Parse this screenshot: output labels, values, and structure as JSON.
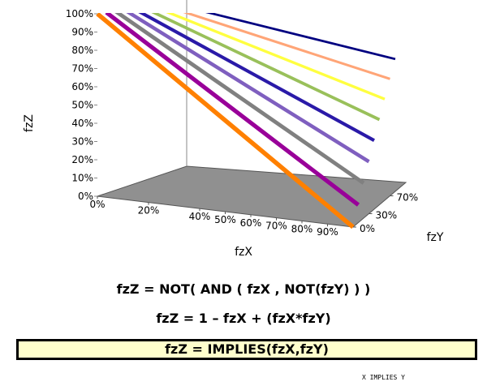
{
  "chart_data": {
    "type": "line3d",
    "xlabel": "fzX",
    "ylabel": "fzY",
    "zlabel": "fzZ",
    "x": [
      0,
      100
    ],
    "series": [
      {
        "y": 0,
        "color": "#ff8000",
        "values": [
          100,
          0
        ]
      },
      {
        "y": 10,
        "color": "#990099",
        "values": [
          100,
          10
        ]
      },
      {
        "y": 20,
        "color": "#808080",
        "values": [
          100,
          20
        ]
      },
      {
        "y": 30,
        "color": "#7f5fbf",
        "values": [
          100,
          30
        ]
      },
      {
        "y": 40,
        "color": "#2a1aa8",
        "values": [
          100,
          40
        ]
      },
      {
        "y": 50,
        "color": "#99c05a",
        "values": [
          100,
          50
        ]
      },
      {
        "y": 60,
        "color": "#ffff40",
        "values": [
          100,
          60
        ]
      },
      {
        "y": 70,
        "color": "#ffa577",
        "values": [
          100,
          70
        ]
      },
      {
        "y": 80,
        "color": "#000080",
        "values": [
          100,
          80
        ]
      }
    ],
    "xlim": [
      0,
      100
    ],
    "ylim": [
      0,
      100
    ],
    "zlim": [
      0,
      100
    ],
    "xticks": [
      {
        "value": 0,
        "label": "0%"
      },
      {
        "value": 20,
        "label": "20%"
      },
      {
        "value": 40,
        "label": "40%"
      },
      {
        "value": 50,
        "label": "50%"
      },
      {
        "value": 60,
        "label": "60%"
      },
      {
        "value": 70,
        "label": "70%"
      },
      {
        "value": 80,
        "label": "80%"
      },
      {
        "value": 90,
        "label": "90%"
      }
    ],
    "yticks": [
      {
        "value": 0,
        "label": "0%"
      },
      {
        "value": 30,
        "label": "30%"
      },
      {
        "value": 70,
        "label": "70%"
      }
    ],
    "zticks": [
      {
        "value": 0,
        "label": "0%"
      },
      {
        "value": 10,
        "label": "10%"
      },
      {
        "value": 20,
        "label": "20%"
      },
      {
        "value": 30,
        "label": "30%"
      },
      {
        "value": 40,
        "label": "40%"
      },
      {
        "value": 50,
        "label": "50%"
      },
      {
        "value": 60,
        "label": "60%"
      },
      {
        "value": 70,
        "label": "70%"
      },
      {
        "value": 80,
        "label": "80%"
      },
      {
        "value": 90,
        "label": "90%"
      },
      {
        "value": 100,
        "label": "100%"
      }
    ],
    "floor_color": "#909090"
  },
  "formulas": [
    "fzZ = NOT( AND ( fzX , NOT(fzY) ) )",
    "fzZ = 1 – fzX + (fzX*fzY)"
  ],
  "banner": "fzZ = IMPLIES(fzX,fzY)",
  "footnote": "X IMPLIES Y"
}
